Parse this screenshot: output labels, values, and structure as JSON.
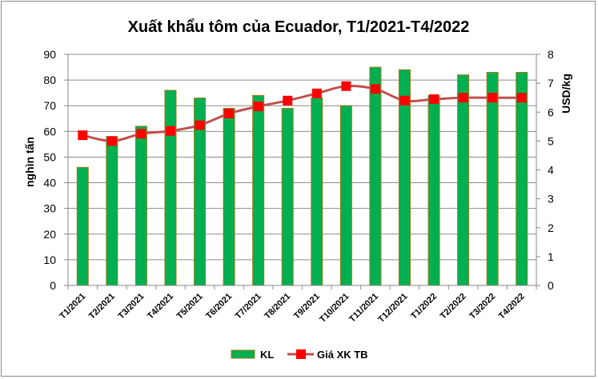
{
  "chart_data": {
    "type": "bar",
    "title": "Xuất khẩu tôm của Ecuador, T1/2021-T4/2022",
    "categories": [
      "T1/2021",
      "T2/2021",
      "T3/2021",
      "T4/2021",
      "T5/2021",
      "T6/2021",
      "T7/2021",
      "T8/2021",
      "T9/2021",
      "T10/2021",
      "T11/2021",
      "T12/2021",
      "T1/2022",
      "T2/2022",
      "T3/2022",
      "T4/2022"
    ],
    "ylabel": "nghìn tấn",
    "y2label": "USD/kg",
    "ylim": [
      0,
      90
    ],
    "y2lim": [
      0,
      8
    ],
    "yticks": [
      "0",
      "10",
      "20",
      "30",
      "40",
      "50",
      "60",
      "70",
      "80",
      "90"
    ],
    "y2ticks": [
      "0",
      "1",
      "2",
      "3",
      "4",
      "5",
      "6",
      "7",
      "8"
    ],
    "grid": true,
    "legend_position": "bottom",
    "series": [
      {
        "name": "KL",
        "type": "bar",
        "axis": "left",
        "color": "#00b050",
        "edge_color": "#9c7a1a",
        "values": [
          46,
          58,
          62,
          76,
          73,
          69,
          74,
          69,
          73,
          70,
          85,
          84,
          74,
          82,
          83,
          83
        ]
      },
      {
        "name": "Giá XK TB",
        "type": "line",
        "axis": "right",
        "color": "#c0504d",
        "marker_color": "#ff0000",
        "values": [
          5.2,
          5.0,
          5.25,
          5.35,
          5.55,
          5.95,
          6.2,
          6.4,
          6.65,
          6.9,
          6.8,
          6.4,
          6.45,
          6.5,
          6.5,
          6.5
        ]
      }
    ]
  }
}
